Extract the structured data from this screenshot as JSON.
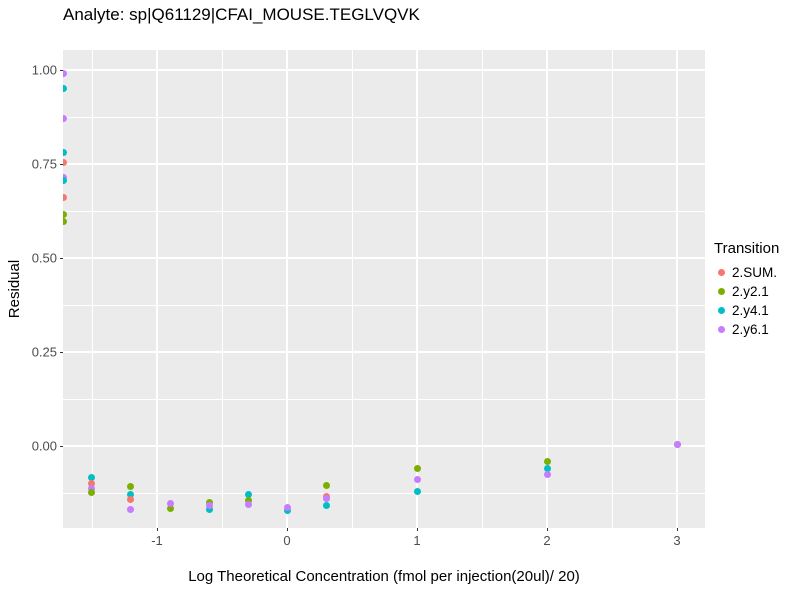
{
  "figure": {
    "title": "Analyte: sp|Q61129|CFAI_MOUSE.TEGLVQVK"
  },
  "axes": {
    "x_label": "Log Theoretical Concentration (fmol per injection(20ul)/ 20)",
    "y_label": "Residual"
  },
  "legend": {
    "title": "Transition",
    "items": [
      {
        "label": "2.SUM.",
        "series": "2.SUM."
      },
      {
        "label": "2.y2.1",
        "series": "2.y2.1"
      },
      {
        "label": "2.y4.1",
        "series": "2.y4.1"
      },
      {
        "label": "2.y6.1",
        "series": "2.y6.1"
      }
    ]
  },
  "colors": {
    "panel_bg": "#EBEBEB",
    "grid": "#FFFFFF",
    "tick_text": "#4D4D4D",
    "title_text": "#000000"
  },
  "chart_data": {
    "type": "scatter",
    "title": "Analyte: sp|Q61129|CFAI_MOUSE.TEGLVQVK",
    "xlabel": "Log Theoretical Concentration (fmol per injection(20ul)/ 20)",
    "ylabel": "Residual",
    "legend_title": "Transition",
    "legend_position": "right",
    "grid": true,
    "xlim": [
      -1.723,
      3.215
    ],
    "ylim": [
      -0.218,
      1.053
    ],
    "x_ticks": [
      -1,
      0,
      1,
      2,
      3
    ],
    "x_tick_labels": [
      "-1",
      "0",
      "1",
      "2",
      "3"
    ],
    "y_ticks": [
      0,
      0.25,
      0.5,
      0.75,
      1
    ],
    "y_tick_labels": [
      "0.00",
      "0.25",
      "0.50",
      "0.75",
      "1.00"
    ],
    "x_minor": [
      -1.5,
      -0.5,
      0.5,
      1.5,
      2.5
    ],
    "y_minor": [
      -0.125,
      0.125,
      0.375,
      0.625,
      0.875
    ],
    "series_colors": {
      "2.SUM.": "#F8766D",
      "2.y2.1": "#7CAE00",
      "2.y4.1": "#00BFC4",
      "2.y6.1": "#C77CFF"
    },
    "points": [
      {
        "x": -1.72,
        "y": 0.99,
        "s": "2.y6.1"
      },
      {
        "x": -1.72,
        "y": 0.95,
        "s": "2.y4.1"
      },
      {
        "x": -1.72,
        "y": 0.87,
        "s": "2.y6.1"
      },
      {
        "x": -1.72,
        "y": 0.78,
        "s": "2.y4.1"
      },
      {
        "x": -1.72,
        "y": 0.755,
        "s": "2.SUM."
      },
      {
        "x": -1.72,
        "y": 0.715,
        "s": "2.y6.1"
      },
      {
        "x": -1.72,
        "y": 0.705,
        "s": "2.y4.1"
      },
      {
        "x": -1.72,
        "y": 0.66,
        "s": "2.SUM."
      },
      {
        "x": -1.72,
        "y": 0.615,
        "s": "2.y2.1"
      },
      {
        "x": -1.72,
        "y": 0.598,
        "s": "2.y2.1"
      },
      {
        "x": -1.5,
        "y": -0.085,
        "s": "2.y4.1"
      },
      {
        "x": -1.5,
        "y": -0.1,
        "s": "2.SUM."
      },
      {
        "x": -1.5,
        "y": -0.113,
        "s": "2.y6.1"
      },
      {
        "x": -1.5,
        "y": -0.123,
        "s": "2.y2.1"
      },
      {
        "x": -1.2,
        "y": -0.108,
        "s": "2.y2.1"
      },
      {
        "x": -1.2,
        "y": -0.128,
        "s": "2.y4.1"
      },
      {
        "x": -1.2,
        "y": -0.143,
        "s": "2.SUM."
      },
      {
        "x": -1.2,
        "y": -0.168,
        "s": "2.y6.1"
      },
      {
        "x": -0.9,
        "y": -0.165,
        "s": "2.y2.1"
      },
      {
        "x": -0.9,
        "y": -0.153,
        "s": "2.y6.1"
      },
      {
        "x": -0.6,
        "y": -0.149,
        "s": "2.y2.1"
      },
      {
        "x": -0.6,
        "y": -0.17,
        "s": "2.y4.1"
      },
      {
        "x": -0.6,
        "y": -0.157,
        "s": "2.y6.1"
      },
      {
        "x": -0.3,
        "y": -0.128,
        "s": "2.y4.1"
      },
      {
        "x": -0.3,
        "y": -0.144,
        "s": "2.y2.1"
      },
      {
        "x": -0.3,
        "y": -0.155,
        "s": "2.y6.1"
      },
      {
        "x": 0,
        "y": -0.171,
        "s": "2.y4.1"
      },
      {
        "x": 0,
        "y": -0.163,
        "s": "2.y6.1"
      },
      {
        "x": 0.3,
        "y": -0.104,
        "s": "2.y2.1"
      },
      {
        "x": 0.3,
        "y": -0.135,
        "s": "2.SUM."
      },
      {
        "x": 0.3,
        "y": -0.139,
        "s": "2.y6.1"
      },
      {
        "x": 0.3,
        "y": -0.157,
        "s": "2.y4.1"
      },
      {
        "x": 1,
        "y": -0.059,
        "s": "2.y2.1"
      },
      {
        "x": 1,
        "y": -0.088,
        "s": "2.y6.1"
      },
      {
        "x": 1,
        "y": -0.12,
        "s": "2.y4.1"
      },
      {
        "x": 2,
        "y": -0.04,
        "s": "2.y2.1"
      },
      {
        "x": 2,
        "y": -0.059,
        "s": "2.y4.1"
      },
      {
        "x": 2,
        "y": -0.077,
        "s": "2.y6.1"
      },
      {
        "x": 3,
        "y": 0.003,
        "s": "2.y2.1"
      },
      {
        "x": 3,
        "y": 0.005,
        "s": "2.y6.1"
      }
    ]
  }
}
